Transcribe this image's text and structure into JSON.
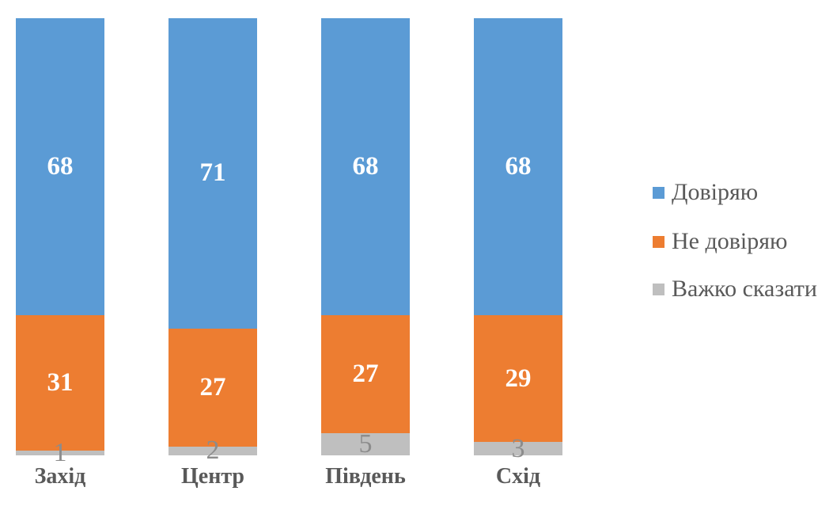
{
  "chart_data": {
    "type": "bar",
    "variant": "100-percent-stacked-column",
    "title": "",
    "categories": [
      "Захід",
      "Центр",
      "Південь",
      "Схід"
    ],
    "series": [
      {
        "key": "trust",
        "name": "Довіряю",
        "color": "#5B9BD5",
        "label_color": "#FFFFFF",
        "values": [
          68,
          71,
          68,
          68
        ]
      },
      {
        "key": "distrust",
        "name": "Не довіряю",
        "color": "#ED7D31",
        "label_color": "#FFFFFF",
        "values": [
          31,
          27,
          27,
          29
        ]
      },
      {
        "key": "hard-to-say",
        "name": "Важко сказати",
        "color": "#BFBFBF",
        "label_color": "#8C8C8C",
        "values": [
          1,
          2,
          5,
          3
        ]
      }
    ],
    "ylim": [
      0,
      100
    ],
    "grid": false,
    "axes_visible": false,
    "legend_position": "right",
    "category_label_color": "#595959",
    "legend_text_color": "#595959",
    "background": "#FFFFFF"
  }
}
